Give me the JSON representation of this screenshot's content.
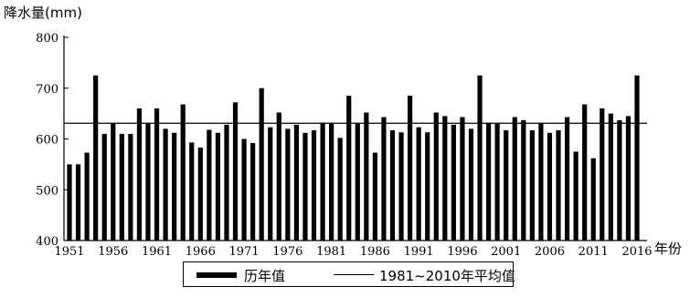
{
  "chart_data": {
    "type": "bar",
    "ylabel": "降水量(mm)",
    "xunit": "年份",
    "ylim": [
      400,
      800
    ],
    "yticks": [
      400,
      500,
      600,
      700,
      800
    ],
    "xticks": [
      1951,
      1956,
      1961,
      1966,
      1971,
      1976,
      1981,
      1986,
      1991,
      1996,
      2001,
      2006,
      2011,
      2016
    ],
    "xstart": 1951,
    "xend": 2016,
    "series": [
      {
        "name": "历年值",
        "x": [
          1951,
          1952,
          1953,
          1954,
          1955,
          1956,
          1957,
          1958,
          1959,
          1960,
          1961,
          1962,
          1963,
          1964,
          1965,
          1966,
          1967,
          1968,
          1969,
          1970,
          1971,
          1972,
          1973,
          1974,
          1975,
          1976,
          1977,
          1978,
          1979,
          1980,
          1981,
          1982,
          1983,
          1984,
          1985,
          1986,
          1987,
          1988,
          1989,
          1990,
          1991,
          1992,
          1993,
          1994,
          1995,
          1996,
          1997,
          1998,
          1999,
          2000,
          2001,
          2002,
          2003,
          2004,
          2005,
          2006,
          2007,
          2008,
          2009,
          2010,
          2011,
          2012,
          2013,
          2014,
          2015,
          2016
        ],
        "values": [
          550,
          550,
          573,
          725,
          610,
          630,
          610,
          610,
          660,
          630,
          660,
          620,
          612,
          668,
          593,
          583,
          618,
          612,
          628,
          672,
          600,
          592,
          700,
          623,
          652,
          620,
          628,
          612,
          617,
          632,
          630,
          602,
          685,
          630,
          652,
          573,
          643,
          617,
          613,
          685,
          623,
          613,
          652,
          645,
          628,
          643,
          620,
          725,
          632,
          630,
          617,
          643,
          637,
          617,
          630,
          612,
          617,
          643,
          575,
          668,
          562,
          660,
          650,
          637,
          645,
          725
        ]
      },
      {
        "name": "1981~2010年平均值",
        "value": 631
      }
    ],
    "legend": "bottom"
  }
}
